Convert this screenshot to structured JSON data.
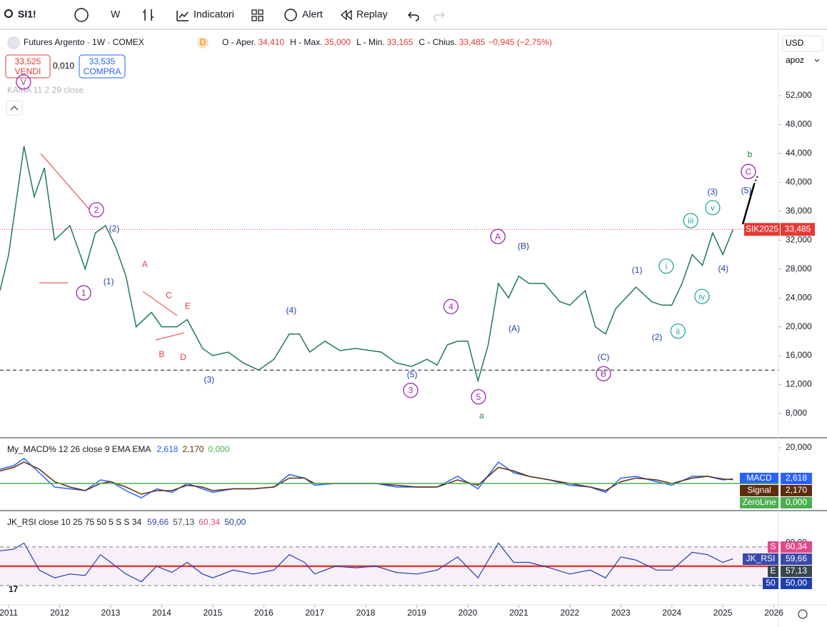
{
  "toolbar": {
    "symbol": "SI1!",
    "interval": "W",
    "indicators": "Indicatori",
    "alert": "Alert",
    "replay": "Replay"
  },
  "trade": {
    "sell_price": "33,525",
    "sell": "VENDI",
    "spread": "0,010",
    "buy_price": "33,535",
    "buy": "COMPRA"
  },
  "scale": {
    "currency": "USD",
    "mode": "apoz"
  },
  "chart_data": [
    {
      "type": "line",
      "title": "Futures Argento · 1W · COMEX",
      "badge": "D",
      "ohlc": [
        {
          "label": "O - Aper.",
          "value": "34,410"
        },
        {
          "label": "H - Max.",
          "value": "35,000"
        },
        {
          "label": "L - Min.",
          "value": "33,165"
        },
        {
          "label": "C - Chius.",
          "value": "33,485"
        }
      ],
      "change": "−0,945 (−2,75%)",
      "indicator": "KAMA 11 2 29 close",
      "xlim": [
        2010.83,
        2026.09
      ],
      "xticks": [
        2011,
        2012,
        2013,
        2014,
        2015,
        2016,
        2017,
        2018,
        2019,
        2020,
        2021,
        2022,
        2023,
        2024,
        2025,
        2026
      ],
      "ylim": [
        4730,
        61100
      ],
      "yticks": [
        {
          "value": 52000,
          "label": "52,000"
        },
        {
          "value": 48000,
          "label": "48,000"
        },
        {
          "value": 44000,
          "label": "44,000"
        },
        {
          "value": 40000,
          "label": "40,000"
        },
        {
          "value": 36000,
          "label": "36,000"
        },
        {
          "value": 32000,
          "label": "32,000"
        },
        {
          "value": 28000,
          "label": "28,000"
        },
        {
          "value": 24000,
          "label": "24,000"
        },
        {
          "value": 20000,
          "label": "20,000"
        },
        {
          "value": 16000,
          "label": "16,000"
        },
        {
          "value": 12000,
          "label": "12,000"
        },
        {
          "value": 8000,
          "label": "8,000"
        }
      ],
      "x": [
        2010.83,
        2011.0,
        2011.3,
        2011.5,
        2011.7,
        2011.9,
        2012.2,
        2012.5,
        2012.7,
        2012.9,
        2013.1,
        2013.3,
        2013.5,
        2013.8,
        2014.0,
        2014.3,
        2014.5,
        2014.8,
        2015.0,
        2015.3,
        2015.6,
        2015.9,
        2016.2,
        2016.5,
        2016.7,
        2016.9,
        2017.2,
        2017.5,
        2017.8,
        2018.0,
        2018.3,
        2018.6,
        2018.9,
        2019.2,
        2019.4,
        2019.6,
        2019.8,
        2020.0,
        2020.2,
        2020.4,
        2020.6,
        2020.8,
        2021.0,
        2021.2,
        2021.5,
        2021.8,
        2022.0,
        2022.3,
        2022.5,
        2022.7,
        2022.9,
        2023.1,
        2023.3,
        2023.6,
        2023.8,
        2024.0,
        2024.2,
        2024.4,
        2024.6,
        2024.8,
        2025.0,
        2025.2
      ],
      "series": [
        {
          "name": "SIK2025",
          "color": "#1f7a5c",
          "values": [
            25000,
            30000,
            45000,
            38000,
            42000,
            32000,
            34000,
            28000,
            33000,
            34000,
            31000,
            27000,
            20000,
            22000,
            20000,
            20000,
            21000,
            17000,
            16000,
            16500,
            15000,
            14000,
            15500,
            19000,
            19000,
            16500,
            18000,
            16700,
            17000,
            16800,
            16500,
            15000,
            14500,
            15500,
            14700,
            17500,
            18000,
            18000,
            12500,
            17500,
            26000,
            24000,
            27000,
            26000,
            26000,
            23500,
            23000,
            25000,
            20000,
            19000,
            22500,
            24000,
            25500,
            23500,
            23000,
            23000,
            26000,
            30000,
            28500,
            33000,
            30000,
            33485
          ]
        }
      ],
      "last": {
        "value": 33485,
        "label": "33,485"
      },
      "support": 14000,
      "annotations": [
        {
          "text": "V",
          "x": 2011.29,
          "y": 53900,
          "color": "#9c27b0",
          "circle": true
        },
        {
          "text": "1",
          "x": 2012.47,
          "y": 24700,
          "color": "#9c27b0",
          "circle": true
        },
        {
          "text": "2",
          "x": 2012.72,
          "y": 36200,
          "color": "#9c27b0",
          "circle": true
        },
        {
          "text": "(2)",
          "x": 2013.07,
          "y": 33600,
          "color": "#1e3fae",
          "circle": false
        },
        {
          "text": "(1)",
          "x": 2012.96,
          "y": 26300,
          "color": "#1e3fae",
          "circle": false
        },
        {
          "text": "A",
          "x": 2013.67,
          "y": 28700,
          "color": "#e53935",
          "circle": false
        },
        {
          "text": "C",
          "x": 2014.14,
          "y": 24400,
          "color": "#e53935",
          "circle": false
        },
        {
          "text": "E",
          "x": 2014.51,
          "y": 22900,
          "color": "#e53935",
          "circle": false
        },
        {
          "text": "B",
          "x": 2014.0,
          "y": 16200,
          "color": "#e53935",
          "circle": false
        },
        {
          "text": "D",
          "x": 2014.42,
          "y": 15800,
          "color": "#e53935",
          "circle": false
        },
        {
          "text": "(3)",
          "x": 2014.93,
          "y": 12700,
          "color": "#1e3fae",
          "circle": false
        },
        {
          "text": "(4)",
          "x": 2016.54,
          "y": 22300,
          "color": "#1e3fae",
          "circle": false
        },
        {
          "text": "(5)",
          "x": 2018.91,
          "y": 13400,
          "color": "#1e3fae",
          "circle": false
        },
        {
          "text": "3",
          "x": 2018.88,
          "y": 11200,
          "color": "#9c27b0",
          "circle": true
        },
        {
          "text": "4",
          "x": 2019.67,
          "y": 22800,
          "color": "#9c27b0",
          "circle": true
        },
        {
          "text": "5",
          "x": 2020.21,
          "y": 10300,
          "color": "#9c27b0",
          "circle": true
        },
        {
          "text": "a",
          "x": 2020.27,
          "y": 7700,
          "color": "#2e7d32",
          "circle": false
        },
        {
          "text": "A",
          "x": 2020.59,
          "y": 32500,
          "color": "#9c27b0",
          "circle": true
        },
        {
          "text": "(B)",
          "x": 2021.09,
          "y": 31200,
          "color": "#1e3fae",
          "circle": false
        },
        {
          "text": "(A)",
          "x": 2020.91,
          "y": 19800,
          "color": "#1e3fae",
          "circle": false
        },
        {
          "text": "(C)",
          "x": 2022.66,
          "y": 15800,
          "color": "#1e3fae",
          "circle": false
        },
        {
          "text": "B",
          "x": 2022.66,
          "y": 13500,
          "color": "#9c27b0",
          "circle": true
        },
        {
          "text": "(1)",
          "x": 2023.32,
          "y": 27900,
          "color": "#1e3fae",
          "circle": false
        },
        {
          "text": "i",
          "x": 2023.89,
          "y": 28400,
          "color": "#26a69a",
          "circle": true
        },
        {
          "text": "(2)",
          "x": 2023.71,
          "y": 18600,
          "color": "#1e3fae",
          "circle": false
        },
        {
          "text": "ii",
          "x": 2024.12,
          "y": 19400,
          "color": "#26a69a",
          "circle": true
        },
        {
          "text": "iii",
          "x": 2024.37,
          "y": 34700,
          "color": "#26a69a",
          "circle": true
        },
        {
          "text": "iv",
          "x": 2024.59,
          "y": 24200,
          "color": "#26a69a",
          "circle": true
        },
        {
          "text": "(3)",
          "x": 2024.8,
          "y": 38700,
          "color": "#1e3fae",
          "circle": false
        },
        {
          "text": "v",
          "x": 2024.8,
          "y": 36500,
          "color": "#26a69a",
          "circle": true
        },
        {
          "text": "(4)",
          "x": 2025.01,
          "y": 28100,
          "color": "#1e3fae",
          "circle": false
        },
        {
          "text": "(5)",
          "x": 2025.46,
          "y": 38900,
          "color": "#1e3fae",
          "circle": false
        },
        {
          "text": "C",
          "x": 2025.5,
          "y": 41500,
          "color": "#9c27b0",
          "circle": true
        },
        {
          "text": "b",
          "x": 2025.53,
          "y": 43900,
          "color": "#2e7d32",
          "circle": false
        }
      ]
    },
    {
      "type": "line",
      "title": "My_MACD% 12 26 close 9 EMA EMA",
      "ylim": [
        -14.8,
        25.2
      ],
      "yticks": [
        {
          "value": 20,
          "label": "20,000"
        }
      ],
      "x": [
        2010.83,
        2011.1,
        2011.3,
        2011.6,
        2011.9,
        2012.2,
        2012.5,
        2012.8,
        2013.0,
        2013.3,
        2013.6,
        2013.9,
        2014.2,
        2014.5,
        2014.8,
        2015.0,
        2015.4,
        2015.8,
        2016.2,
        2016.5,
        2016.8,
        2017.0,
        2017.4,
        2017.8,
        2018.2,
        2018.6,
        2019.0,
        2019.4,
        2019.8,
        2020.2,
        2020.6,
        2020.9,
        2021.2,
        2021.6,
        2022.0,
        2022.4,
        2022.7,
        2023.0,
        2023.3,
        2023.7,
        2024.0,
        2024.4,
        2024.7,
        2025.0,
        2025.2
      ],
      "series": [
        {
          "name": "MACD",
          "color": "#2962ff",
          "last": {
            "value": 2.618,
            "label": "2,618"
          },
          "values": [
            8,
            10,
            14,
            6,
            -2,
            -3,
            -4,
            2,
            1,
            -4,
            -8,
            -3,
            -5,
            0,
            -3,
            -5,
            -3,
            -3,
            -2,
            5,
            3,
            -1,
            0,
            0,
            0,
            -2,
            -2,
            -2,
            4,
            -3,
            12,
            6,
            4,
            2,
            -1,
            -2,
            -5,
            3,
            4,
            1,
            -1,
            4,
            4,
            2,
            2.618
          ]
        },
        {
          "name": "Signal",
          "color": "#5d2e0e",
          "last": {
            "value": 2.17,
            "label": "2,170"
          },
          "values": [
            7,
            9,
            12,
            8,
            1,
            -2,
            -4,
            0,
            1,
            -2,
            -6,
            -4,
            -4,
            -1,
            -2,
            -4,
            -3,
            -3,
            -2,
            3,
            3,
            0,
            0,
            0,
            0,
            -1,
            -2,
            -2,
            2,
            -1,
            9,
            7,
            4,
            2,
            0,
            -2,
            -4,
            1,
            3,
            2,
            0,
            3,
            4,
            2.5,
            2.17
          ]
        },
        {
          "name": "ZeroLine",
          "color": "#4caf50",
          "last": {
            "value": 0,
            "label": "0,000"
          }
        }
      ]
    },
    {
      "type": "line",
      "title": "JK_RSI close 10 25 75 50 5 S S 34",
      "ylim": [
        1,
        121
      ],
      "yticks": [
        {
          "value": 80,
          "label": "80,00"
        }
      ],
      "levels": [
        75,
        25
      ],
      "midline": 50,
      "x": [
        2010.83,
        2011.1,
        2011.3,
        2011.6,
        2011.9,
        2012.2,
        2012.5,
        2012.8,
        2013.0,
        2013.3,
        2013.6,
        2013.9,
        2014.2,
        2014.5,
        2014.8,
        2015.0,
        2015.4,
        2015.8,
        2016.2,
        2016.5,
        2016.8,
        2017.0,
        2017.4,
        2017.8,
        2018.2,
        2018.6,
        2019.0,
        2019.4,
        2019.8,
        2020.2,
        2020.6,
        2020.9,
        2021.2,
        2021.6,
        2022.0,
        2022.4,
        2022.7,
        2023.0,
        2023.3,
        2023.7,
        2024.0,
        2024.4,
        2024.7,
        2025.0,
        2025.2
      ],
      "series": [
        {
          "name": "JK_RSI",
          "color": "#1e3fae",
          "values": [
            70,
            72,
            80,
            45,
            35,
            40,
            38,
            65,
            55,
            40,
            30,
            50,
            42,
            55,
            40,
            35,
            45,
            40,
            45,
            65,
            55,
            40,
            50,
            48,
            50,
            42,
            40,
            45,
            62,
            35,
            80,
            55,
            55,
            48,
            40,
            45,
            35,
            62,
            58,
            45,
            45,
            68,
            65,
            55,
            59.66
          ]
        }
      ],
      "badges": [
        {
          "tag": "S",
          "value": "60,34",
          "color": "#e04a8a"
        },
        {
          "tag": "JK_RSI",
          "value": "59,66",
          "color": "#3949ab"
        },
        {
          "tag": "E",
          "value": "57,13",
          "color": "#37474f"
        },
        {
          "tag": "50",
          "value": "50,00",
          "color": "#1e3fae"
        }
      ]
    }
  ]
}
